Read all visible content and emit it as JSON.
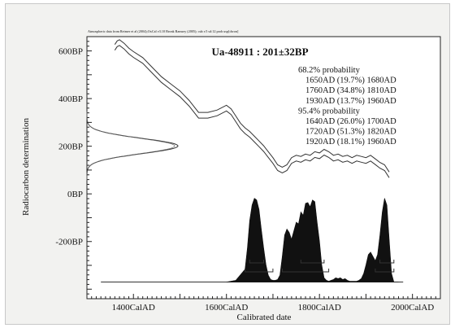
{
  "header_note": "Atmospheric data from Reimer et al (2004);OxCal v3.10 Bronk Ramsey (2005); cub r:5 sd:12 prob usp[chron]",
  "chart_data": {
    "type": "area",
    "title": "Ua-48911 : 201±32BP",
    "xlabel": "Calibrated date",
    "ylabel": "Radiocarbon determination",
    "xlim": [
      1300,
      2060
    ],
    "ylim": [
      -440,
      660
    ],
    "grid": false,
    "xticks": [
      {
        "value": 1400,
        "label": "1400CalAD"
      },
      {
        "value": 1600,
        "label": "1600CalAD"
      },
      {
        "value": 1800,
        "label": "1800CalAD"
      },
      {
        "value": 2000,
        "label": "2000CalAD"
      }
    ],
    "yticks": [
      {
        "value": 600,
        "label": "600BP"
      },
      {
        "value": 400,
        "label": "400BP"
      },
      {
        "value": 200,
        "label": "200BP"
      },
      {
        "value": 0,
        "label": "0BP"
      },
      {
        "value": -200,
        "label": "-200BP"
      }
    ],
    "probability_text": [
      "68.2% probability",
      "1650AD (19.7%) 1680AD",
      "1760AD (34.8%) 1810AD",
      "1930AD (13.7%) 1960AD",
      "95.4% probability",
      "1640AD (26.0%) 1700AD",
      "1720AD (51.3%) 1820AD",
      "1920AD (18.1%) 1960AD"
    ],
    "measurement": {
      "mean": 201,
      "sigma": 32
    },
    "calibration_curve": {
      "x": [
        1360,
        1365,
        1370,
        1380,
        1390,
        1400,
        1420,
        1440,
        1460,
        1480,
        1500,
        1520,
        1540,
        1560,
        1580,
        1600,
        1610,
        1620,
        1630,
        1640,
        1650,
        1660,
        1670,
        1680,
        1690,
        1700,
        1710,
        1720,
        1730,
        1740,
        1750,
        1760,
        1770,
        1780,
        1790,
        1800,
        1810,
        1820,
        1830,
        1840,
        1850,
        1860,
        1870,
        1880,
        1890,
        1900,
        1910,
        1920,
        1930,
        1940,
        1950
      ],
      "y": [
        615,
        630,
        635,
        620,
        600,
        585,
        560,
        520,
        480,
        450,
        420,
        380,
        330,
        330,
        340,
        360,
        345,
        315,
        285,
        265,
        250,
        230,
        210,
        190,
        165,
        140,
        110,
        100,
        110,
        140,
        150,
        145,
        155,
        150,
        165,
        160,
        175,
        165,
        150,
        155,
        145,
        150,
        140,
        150,
        145,
        140,
        150,
        135,
        120,
        110,
        80
      ],
      "band": 12
    },
    "probability_distribution": {
      "x": [
        1600,
        1620,
        1640,
        1645,
        1650,
        1655,
        1660,
        1665,
        1670,
        1675,
        1680,
        1685,
        1690,
        1695,
        1700,
        1705,
        1710,
        1715,
        1720,
        1725,
        1730,
        1735,
        1740,
        1745,
        1750,
        1755,
        1760,
        1765,
        1770,
        1775,
        1780,
        1785,
        1790,
        1795,
        1800,
        1805,
        1810,
        1815,
        1820,
        1825,
        1830,
        1835,
        1840,
        1845,
        1850,
        1855,
        1860,
        1865,
        1870,
        1875,
        1880,
        1885,
        1890,
        1895,
        1900,
        1905,
        1910,
        1915,
        1920,
        1925,
        1930,
        1935,
        1940,
        1945,
        1950,
        1955,
        1960,
        1965,
        1970
      ],
      "y": [
        0,
        0.02,
        0.15,
        0.4,
        0.72,
        0.9,
        0.98,
        0.96,
        0.85,
        0.62,
        0.4,
        0.2,
        0.08,
        0.03,
        0.02,
        0.02,
        0.03,
        0.08,
        0.3,
        0.55,
        0.62,
        0.58,
        0.5,
        0.6,
        0.7,
        0.68,
        0.82,
        0.78,
        0.92,
        0.93,
        0.88,
        0.96,
        0.94,
        0.7,
        0.48,
        0.2,
        0.05,
        0.02,
        0.01,
        0.02,
        0.03,
        0.05,
        0.04,
        0.05,
        0.03,
        0.04,
        0.02,
        0.01,
        0.01,
        0.01,
        0.01,
        0.02,
        0.04,
        0.1,
        0.2,
        0.32,
        0.35,
        0.3,
        0.25,
        0.32,
        0.55,
        0.82,
        0.98,
        0.9,
        0.5,
        0.1,
        0,
        0,
        0
      ]
    },
    "ranges_68": [
      [
        1650,
        1680
      ],
      [
        1760,
        1810
      ],
      [
        1930,
        1960
      ]
    ],
    "ranges_95": [
      [
        1640,
        1700
      ],
      [
        1720,
        1820
      ],
      [
        1920,
        1960
      ]
    ]
  }
}
